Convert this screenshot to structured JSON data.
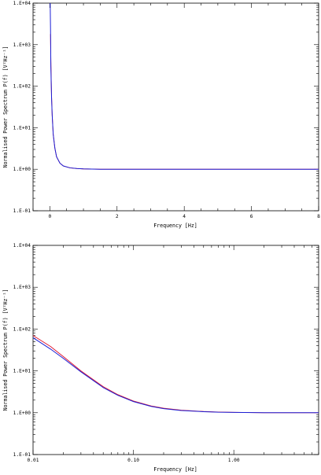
{
  "colors": {
    "observed": "#e0102a",
    "model": "#1b1fd6",
    "axes": "#000000"
  },
  "chart_data": [
    {
      "type": "line",
      "xlabel": "Frequency [Hz]",
      "ylabel": "Normalised Power Spectrum P(f) [V²Hz⁻¹]",
      "xlim": [
        -0.5,
        8
      ],
      "ylim": [
        0.1,
        10000
      ],
      "yscale": "log",
      "xtick_labels": [
        "0",
        "2",
        "4",
        "6",
        "8"
      ],
      "ytick_labels": [
        "1.E-01",
        "1.E+00",
        "1.E+01",
        "1.E+02",
        "1.E+03",
        "1.E+04"
      ],
      "series": [
        {
          "x": [
            0.02,
            0.03,
            0.05,
            0.07,
            0.1,
            0.15,
            0.2,
            0.3,
            0.4,
            0.6,
            0.8,
            1.0,
            1.5,
            2.0,
            3.0,
            4.0,
            5.0,
            6.0,
            7.0,
            8.0
          ],
          "y": [
            1800,
            400,
            60,
            20,
            7,
            3.2,
            2.0,
            1.4,
            1.2,
            1.08,
            1.04,
            1.02,
            1.0,
            1.0,
            1.0,
            1.0,
            1.0,
            1.0,
            1.0,
            1.0
          ]
        },
        {
          "x": [
            0.01,
            0.02,
            0.03,
            0.05,
            0.07,
            0.1,
            0.15,
            0.2,
            0.3,
            0.4,
            0.6,
            0.8,
            1.0,
            1.5,
            2.0,
            3.0,
            4.0,
            5.0,
            6.0,
            7.0,
            8.0
          ],
          "y": [
            10000,
            2500,
            300,
            55,
            20,
            7,
            3.2,
            2.0,
            1.4,
            1.2,
            1.08,
            1.04,
            1.02,
            1.0,
            1.0,
            1.0,
            1.0,
            1.0,
            1.0,
            1.0,
            1.0
          ]
        }
      ]
    },
    {
      "type": "line",
      "xlabel": "Frequency [Hz]",
      "ylabel": "Normalised Power Spectrum P(f) [V²Hz⁻¹]",
      "xlim": [
        0.01,
        7
      ],
      "ylim": [
        0.1,
        10000
      ],
      "xscale": "log",
      "yscale": "log",
      "xtick_labels": [
        "0.01",
        "0.10",
        "1.00"
      ],
      "ytick_labels": [
        "1.E-01",
        "1.E+00",
        "1.E+01",
        "1.E+02",
        "1.E+03",
        "1.E+04"
      ],
      "series": [
        {
          "x": [
            0.01,
            0.015,
            0.02,
            0.03,
            0.05,
            0.07,
            0.1,
            0.15,
            0.2,
            0.3,
            0.5,
            0.7,
            1.0,
            2.0,
            3.0,
            5.0,
            7.0
          ],
          "y": [
            70,
            38,
            22,
            10,
            4.2,
            2.7,
            1.9,
            1.45,
            1.28,
            1.15,
            1.07,
            1.04,
            1.02,
            1.0,
            1.0,
            1.0,
            1.0
          ]
        },
        {
          "x": [
            0.01,
            0.015,
            0.02,
            0.03,
            0.05,
            0.07,
            0.1,
            0.15,
            0.2,
            0.3,
            0.5,
            0.7,
            1.0,
            2.0,
            3.0,
            5.0,
            7.0
          ],
          "y": [
            62,
            33,
            20,
            9.5,
            4.0,
            2.6,
            1.85,
            1.42,
            1.25,
            1.13,
            1.06,
            1.03,
            1.02,
            1.0,
            1.0,
            1.0,
            1.0
          ]
        }
      ]
    }
  ]
}
